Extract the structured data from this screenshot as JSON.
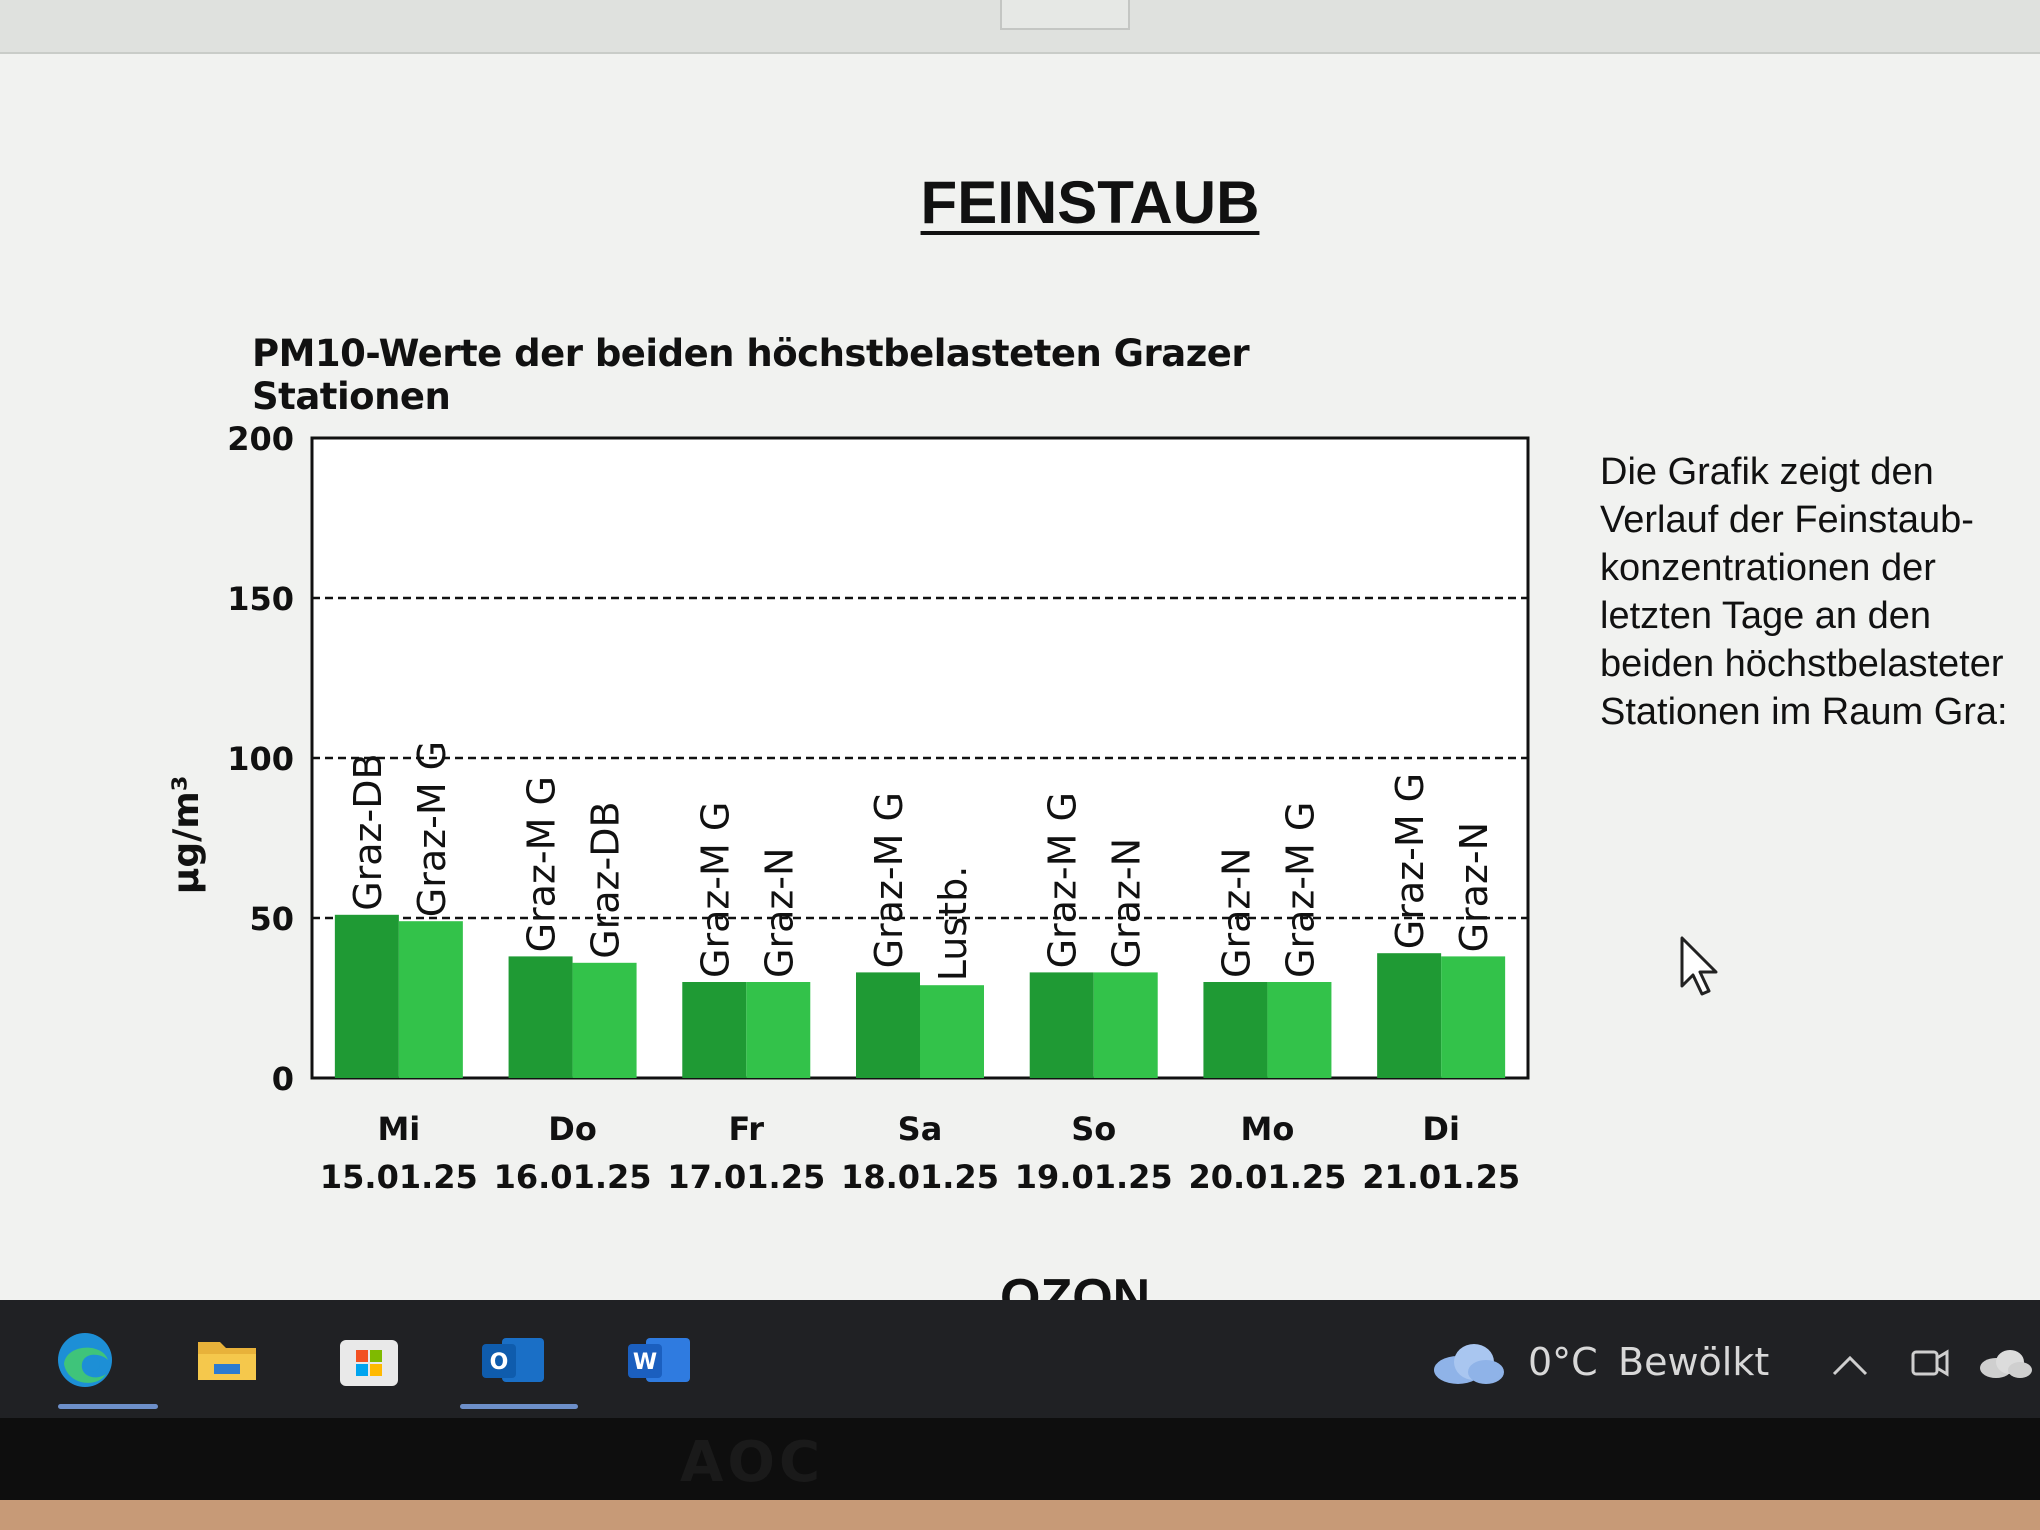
{
  "document": {
    "heading": "FEINSTAUB",
    "side_text": [
      "Die Grafik zeigt den",
      "Verlauf der Feinstaub-",
      "konzentrationen der",
      "letzten Tage an den",
      "beiden höchstbelasteter",
      "Stationen im Raum Gra:"
    ],
    "next_heading": "OZON"
  },
  "chart_data": {
    "type": "bar",
    "title": "PM10-Werte der beiden höchstbelasteten Grazer Stationen",
    "ylabel": "µg/m³",
    "xlabel": "",
    "ylim": [
      0,
      200
    ],
    "yticks": [
      0,
      50,
      100,
      150,
      200
    ],
    "reference_lines": [
      50,
      100,
      150
    ],
    "grid": false,
    "legend": "none",
    "categories": [
      {
        "day": "Mi",
        "date": "15.01.25"
      },
      {
        "day": "Do",
        "date": "16.01.25"
      },
      {
        "day": "Fr",
        "date": "17.01.25"
      },
      {
        "day": "Sa",
        "date": "18.01.25"
      },
      {
        "day": "So",
        "date": "19.01.25"
      },
      {
        "day": "Mo",
        "date": "20.01.25"
      },
      {
        "day": "Di",
        "date": "21.01.25"
      }
    ],
    "groups": [
      {
        "bars": [
          {
            "station": "Graz-DB",
            "value": 51
          },
          {
            "station": "Graz-M G",
            "value": 49
          }
        ]
      },
      {
        "bars": [
          {
            "station": "Graz-M G",
            "value": 38
          },
          {
            "station": "Graz-DB",
            "value": 36
          }
        ]
      },
      {
        "bars": [
          {
            "station": "Graz-M G",
            "value": 30
          },
          {
            "station": "Graz-N",
            "value": 30
          }
        ]
      },
      {
        "bars": [
          {
            "station": "Graz-M G",
            "value": 33
          },
          {
            "station": "Lustb.",
            "value": 29
          }
        ]
      },
      {
        "bars": [
          {
            "station": "Graz-M G",
            "value": 33
          },
          {
            "station": "Graz-N",
            "value": 33
          }
        ]
      },
      {
        "bars": [
          {
            "station": "Graz-N",
            "value": 30
          },
          {
            "station": "Graz-M G",
            "value": 30
          }
        ]
      },
      {
        "bars": [
          {
            "station": "Graz-M G",
            "value": 39
          },
          {
            "station": "Graz-N",
            "value": 38
          }
        ]
      }
    ],
    "colors": {
      "first_bar": "#1f9a34",
      "second_bar": "#33c24a",
      "frame": "#111111"
    }
  },
  "taskbar": {
    "apps": [
      {
        "name": "Microsoft Edge",
        "icon": "edge-icon",
        "active": true
      },
      {
        "name": "File Explorer",
        "icon": "folder-icon",
        "active": false
      },
      {
        "name": "Microsoft Store",
        "icon": "store-icon",
        "active": false
      },
      {
        "name": "Outlook",
        "icon": "outlook-icon",
        "letter": "O",
        "active": true
      },
      {
        "name": "Word",
        "icon": "word-icon",
        "letter": "W",
        "active": false
      }
    ],
    "weather": {
      "temp": "0°C",
      "condition": "Bewölkt",
      "icon": "cloud-icon"
    }
  },
  "monitor": {
    "brand": "AOC"
  }
}
